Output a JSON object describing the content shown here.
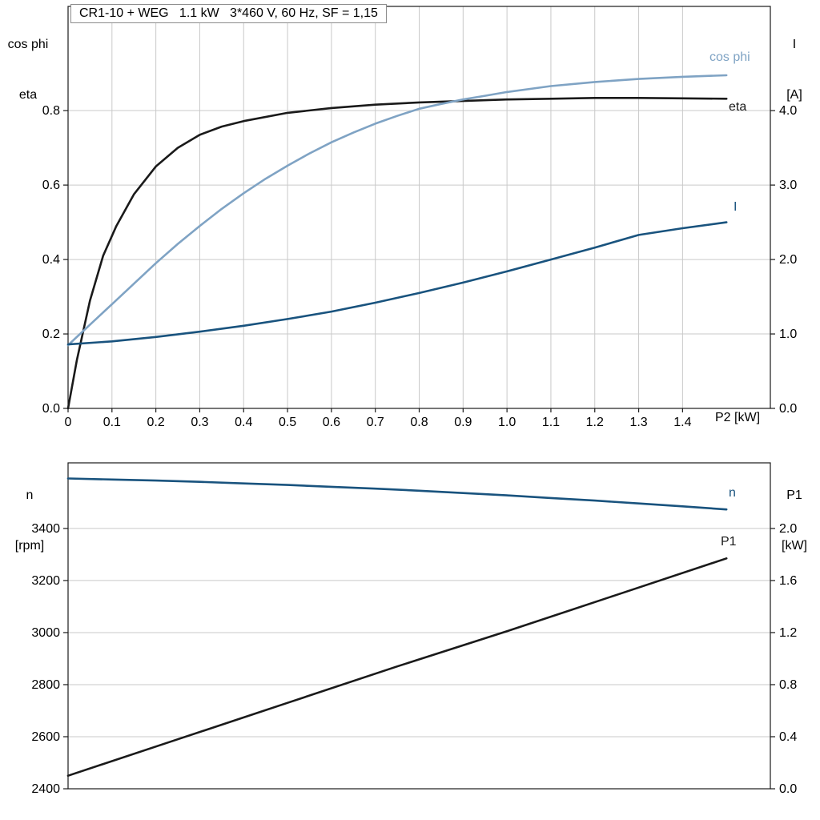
{
  "title": "CR1-10 + WEG   1.1 kW   3*460 V, 60 Hz, SF = 1,15",
  "style": {
    "grid": "#c9c9c9",
    "frame": "#1a1a1a",
    "background": "#ffffff"
  },
  "chart_data": [
    {
      "type": "line",
      "title": "CR1-10 + WEG   1.1 kW   3*460 V, 60 Hz, SF = 1,15",
      "xlabel": "P2 [kW]",
      "xlim": [
        0,
        1.6
      ],
      "grid": "on",
      "x_ticks": [
        0,
        0.1,
        0.2,
        0.3,
        0.4,
        0.5,
        0.6,
        0.7,
        0.8,
        0.9,
        1.0,
        1.1,
        1.2,
        1.3,
        1.4
      ],
      "x_tick_labels": [
        "0",
        "0.1",
        "0.2",
        "0.3",
        "0.4",
        "0.5",
        "0.6",
        "0.7",
        "0.8",
        "0.9",
        "1.0",
        "1.1",
        "1.2",
        "1.3",
        "1.4"
      ],
      "left_axis": {
        "title_lines": [
          "cos phi",
          "eta"
        ],
        "lim": [
          0,
          1.08
        ],
        "ticks": [
          0,
          0.2,
          0.4,
          0.6,
          0.8
        ],
        "tick_labels": [
          "0.0",
          "0.2",
          "0.4",
          "0.6",
          "0.8"
        ]
      },
      "right_axis": {
        "title_lines": [
          "I",
          "[A]"
        ],
        "lim": [
          0,
          5.4
        ],
        "ticks": [
          0,
          1,
          2,
          3,
          4
        ],
        "tick_labels": [
          "0.0",
          "1.0",
          "2.0",
          "3.0",
          "4.0"
        ]
      },
      "series": [
        {
          "name": "eta",
          "label": "eta",
          "axis": "left",
          "color": "#1a1a1a",
          "x": [
            0,
            0.02,
            0.05,
            0.08,
            0.11,
            0.15,
            0.2,
            0.25,
            0.3,
            0.35,
            0.4,
            0.5,
            0.6,
            0.7,
            0.8,
            0.9,
            1.0,
            1.1,
            1.2,
            1.3,
            1.4,
            1.5
          ],
          "y": [
            0,
            0.13,
            0.29,
            0.41,
            0.49,
            0.575,
            0.65,
            0.7,
            0.735,
            0.757,
            0.772,
            0.794,
            0.807,
            0.816,
            0.822,
            0.826,
            0.83,
            0.832,
            0.834,
            0.834,
            0.833,
            0.832
          ]
        },
        {
          "name": "cos phi",
          "label": "cos phi",
          "axis": "left",
          "color": "#7fa3c4",
          "x": [
            0,
            0.05,
            0.1,
            0.15,
            0.2,
            0.25,
            0.3,
            0.35,
            0.4,
            0.45,
            0.5,
            0.55,
            0.6,
            0.65,
            0.7,
            0.75,
            0.8,
            0.85,
            0.9,
            0.95,
            1.0,
            1.1,
            1.2,
            1.3,
            1.4,
            1.5
          ],
          "y": [
            0.17,
            0.225,
            0.28,
            0.335,
            0.39,
            0.442,
            0.49,
            0.536,
            0.578,
            0.617,
            0.652,
            0.685,
            0.715,
            0.741,
            0.765,
            0.786,
            0.805,
            0.818,
            0.83,
            0.84,
            0.85,
            0.866,
            0.877,
            0.885,
            0.891,
            0.895
          ]
        },
        {
          "name": "I",
          "label": "I",
          "axis": "right",
          "color": "#19537e",
          "x": [
            0,
            0.1,
            0.2,
            0.3,
            0.4,
            0.5,
            0.6,
            0.7,
            0.8,
            0.9,
            1.0,
            1.1,
            1.2,
            1.3,
            1.4,
            1.5
          ],
          "y": [
            0.86,
            0.9,
            0.96,
            1.03,
            1.11,
            1.2,
            1.3,
            1.42,
            1.55,
            1.69,
            1.84,
            2.0,
            2.16,
            2.33,
            2.42,
            2.5
          ]
        }
      ]
    },
    {
      "type": "line",
      "xlabel": "",
      "xlim": [
        0,
        1.6
      ],
      "grid": "horizontal-only",
      "x_ticks": [],
      "x_tick_labels": [],
      "left_axis": {
        "title_lines": [
          "n",
          "[rpm]"
        ],
        "lim": [
          2400,
          3652
        ],
        "ticks": [
          2400,
          2600,
          2800,
          3000,
          3200,
          3400
        ],
        "tick_labels": [
          "2400",
          "2600",
          "2800",
          "3000",
          "3200",
          "3400"
        ]
      },
      "right_axis": {
        "title_lines": [
          "P1",
          "[kW]"
        ],
        "lim": [
          0,
          2.504
        ],
        "ticks": [
          0,
          0.4,
          0.8,
          1.2,
          1.6,
          2.0
        ],
        "tick_labels": [
          "0.0",
          "0.4",
          "0.8",
          "1.2",
          "1.6",
          "2.0"
        ]
      },
      "series": [
        {
          "name": "n",
          "label": "n",
          "axis": "left",
          "color": "#19537e",
          "x": [
            0,
            0.1,
            0.2,
            0.3,
            0.4,
            0.5,
            0.6,
            0.7,
            0.8,
            0.9,
            1.0,
            1.1,
            1.2,
            1.3,
            1.4,
            1.5
          ],
          "y": [
            3592,
            3588,
            3584,
            3579,
            3573,
            3567,
            3560,
            3553,
            3545,
            3536,
            3527,
            3517,
            3507,
            3496,
            3485,
            3473
          ]
        },
        {
          "name": "P1",
          "label": "P1",
          "axis": "right",
          "color": "#1a1a1a",
          "x": [
            0,
            0.25,
            0.5,
            0.75,
            1.0,
            1.25,
            1.5
          ],
          "y": [
            0.1,
            0.38,
            0.66,
            0.94,
            1.21,
            1.49,
            1.77
          ]
        }
      ]
    }
  ]
}
